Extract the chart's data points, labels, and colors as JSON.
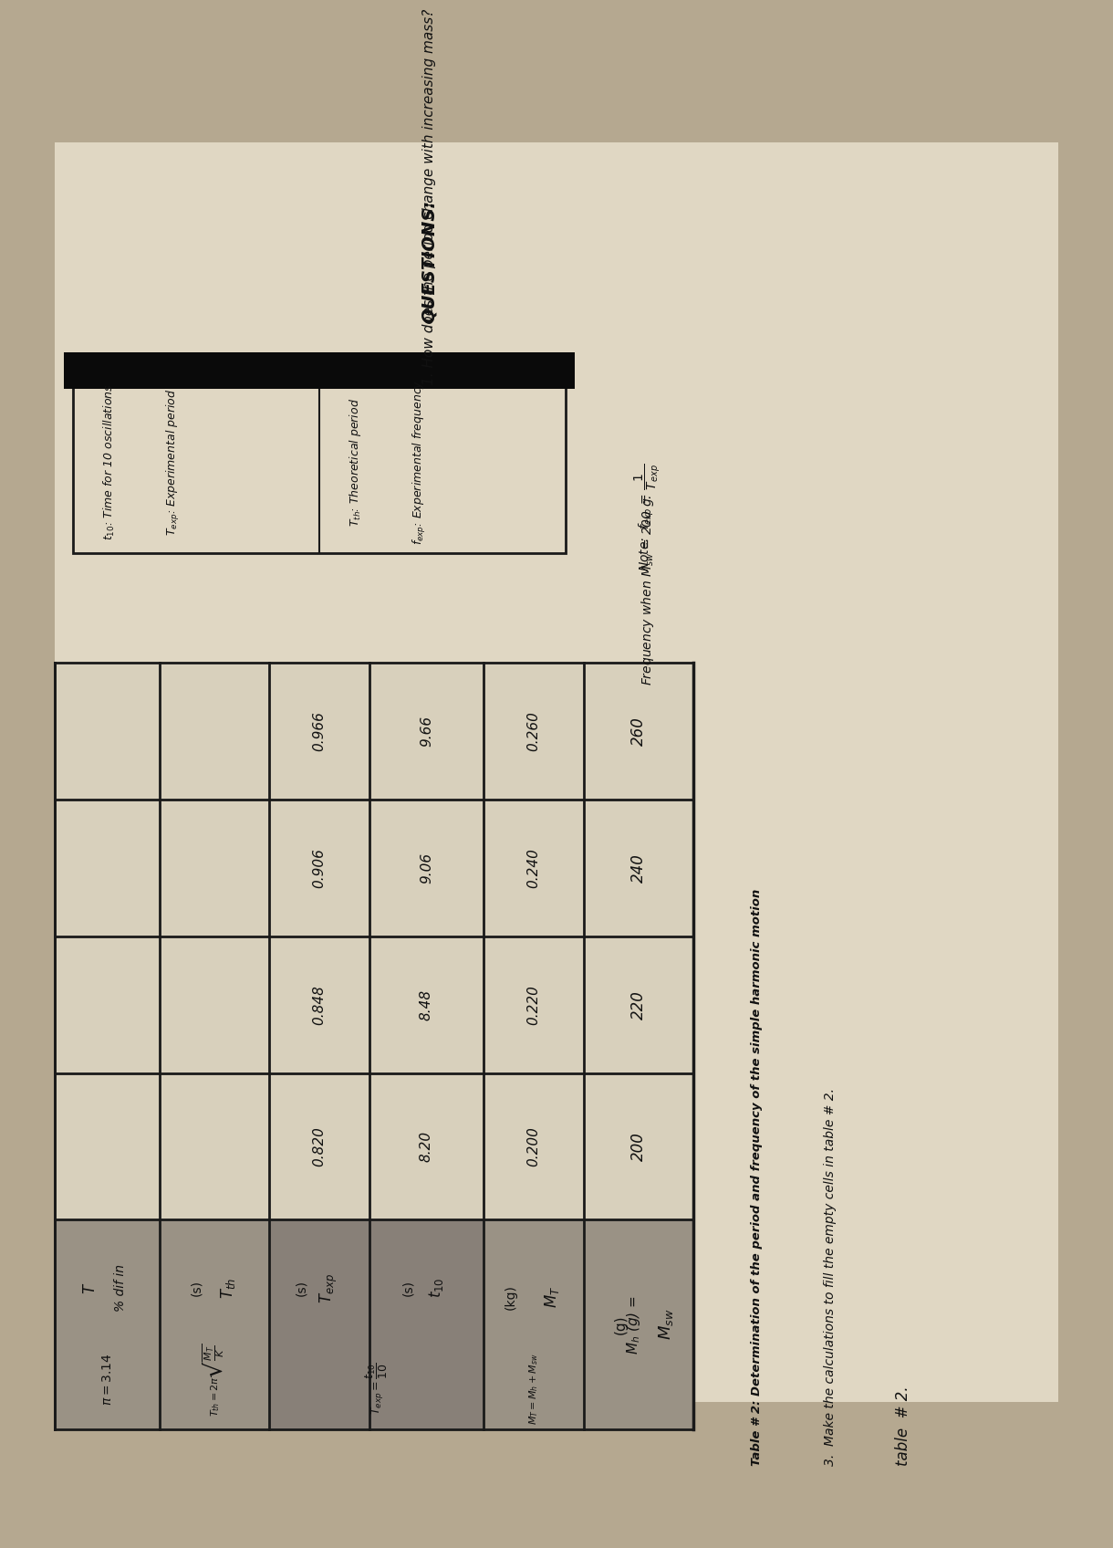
{
  "bg_top": "#c8c0aa",
  "bg_bottom": "#a09580",
  "page_color": "#e2d9c5",
  "header_shade": "#b0a898",
  "line_color": "#1a1a1a",
  "text_color": "#111111",
  "title1": "table  # 2.",
  "subtitle": "Make the calculations to fill the empty cells in table # 2.",
  "table_title": "Table # 2: Determination of the period and frequency of the simple harmonic motion",
  "msw_values": [
    "200",
    "220",
    "240",
    "260"
  ],
  "mt_values": [
    "0.200",
    "0.220",
    "0.240",
    "0.260"
  ],
  "t10_values": [
    "8.20",
    "8.48",
    "9.06",
    "9.66"
  ],
  "texp_values": [
    "0.820",
    "0.848",
    "0.906",
    "0.966"
  ],
  "Mh_label": "M_h (g) =",
  "questions_header": "QUESTIONS:",
  "question1": "1. How does the period change with increasing mass?"
}
